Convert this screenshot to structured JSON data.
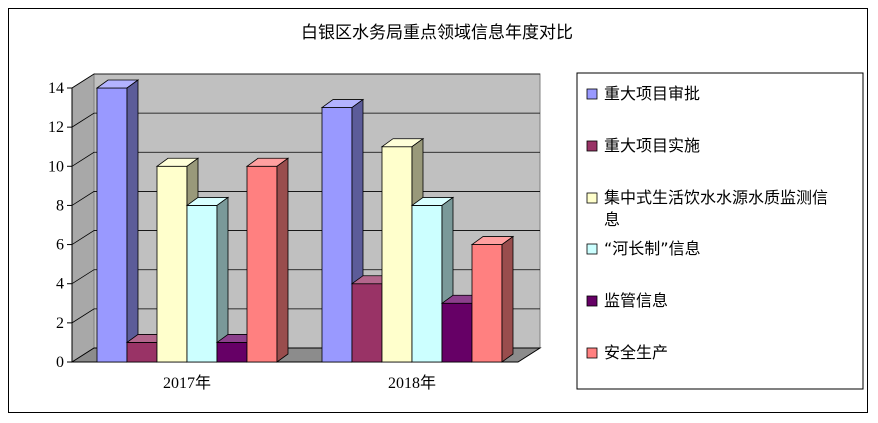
{
  "chart_data": {
    "type": "bar",
    "title": "白银区水务局重点领域信息年度对比",
    "categories": [
      "2017年",
      "2018年"
    ],
    "ylim": [
      0,
      14
    ],
    "yticks": [
      0,
      2,
      4,
      6,
      8,
      10,
      12,
      14
    ],
    "grid": true,
    "legend_position": "right",
    "series": [
      {
        "name": "重大项目审批",
        "values": [
          14,
          13
        ],
        "color": "#9999ff"
      },
      {
        "name": "重大项目实施",
        "values": [
          1,
          4
        ],
        "color": "#993366"
      },
      {
        "name": "集中式生活饮水水源水质监测信息",
        "values": [
          10,
          11
        ],
        "color": "#ffffcc"
      },
      {
        "name": "“河长制”信息",
        "values": [
          8,
          8
        ],
        "color": "#ccffff"
      },
      {
        "name": "监管信息",
        "values": [
          1,
          3
        ],
        "color": "#660066"
      },
      {
        "name": "安全生产",
        "values": [
          10,
          6
        ],
        "color": "#ff8080"
      }
    ]
  }
}
